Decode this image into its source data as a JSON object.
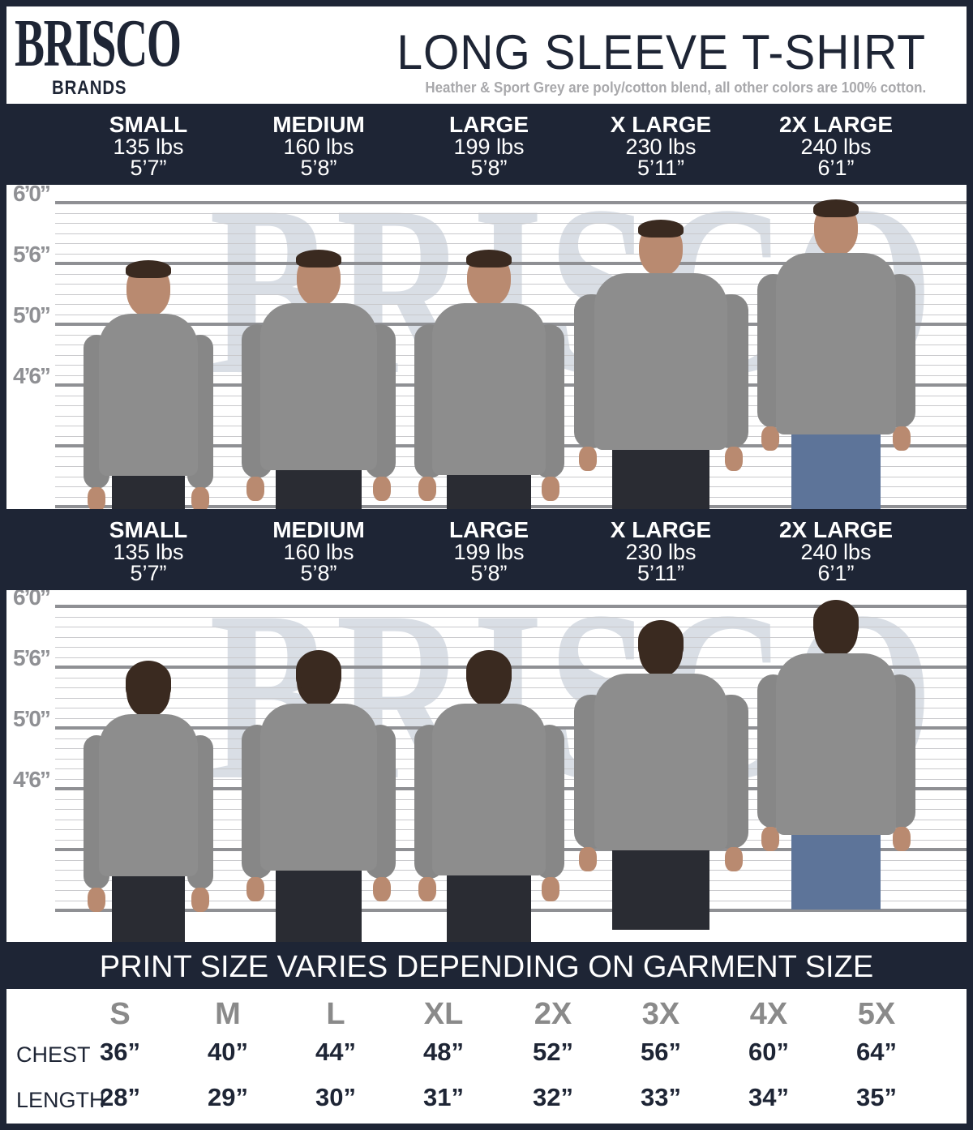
{
  "brand": {
    "logo_top": "BRISCO",
    "logo_bottom": "BRANDS"
  },
  "header": {
    "title": "LONG SLEEVE T-SHIRT",
    "subtitle": "Heather & Sport Grey are poly/cotton blend, all other colors are 100% cotton."
  },
  "models": [
    {
      "size": "SMALL",
      "weight": "135 lbs",
      "height": "5’7”"
    },
    {
      "size": "MEDIUM",
      "weight": "160 lbs",
      "height": "5’8”"
    },
    {
      "size": "LARGE",
      "weight": "199 lbs",
      "height": "5’8”"
    },
    {
      "size": "X LARGE",
      "weight": "230 lbs",
      "height": "5’11”"
    },
    {
      "size": "2X LARGE",
      "weight": "240 lbs",
      "height": "6’1”"
    }
  ],
  "height_scale": [
    "6’0”",
    "5’6”",
    "5’0”",
    "4’6”"
  ],
  "views": [
    "front",
    "back"
  ],
  "watermark": "BRISCO",
  "print_note": "PRINT SIZE VARIES DEPENDING ON GARMENT SIZE",
  "size_table": {
    "sizes": [
      "S",
      "M",
      "L",
      "XL",
      "2X",
      "3X",
      "4X",
      "5X"
    ],
    "rows": [
      {
        "label": "CHEST",
        "values": [
          "36”",
          "40”",
          "44”",
          "48”",
          "52”",
          "56”",
          "60”",
          "64”"
        ]
      },
      {
        "label": "LENGTH",
        "values": [
          "28”",
          "29”",
          "30”",
          "31”",
          "32”",
          "33”",
          "34”",
          "35”"
        ]
      }
    ]
  },
  "colors": {
    "navy": "#1e2535",
    "shirt_grey": "#8d8d8d",
    "label_grey": "#a8a8ab"
  }
}
